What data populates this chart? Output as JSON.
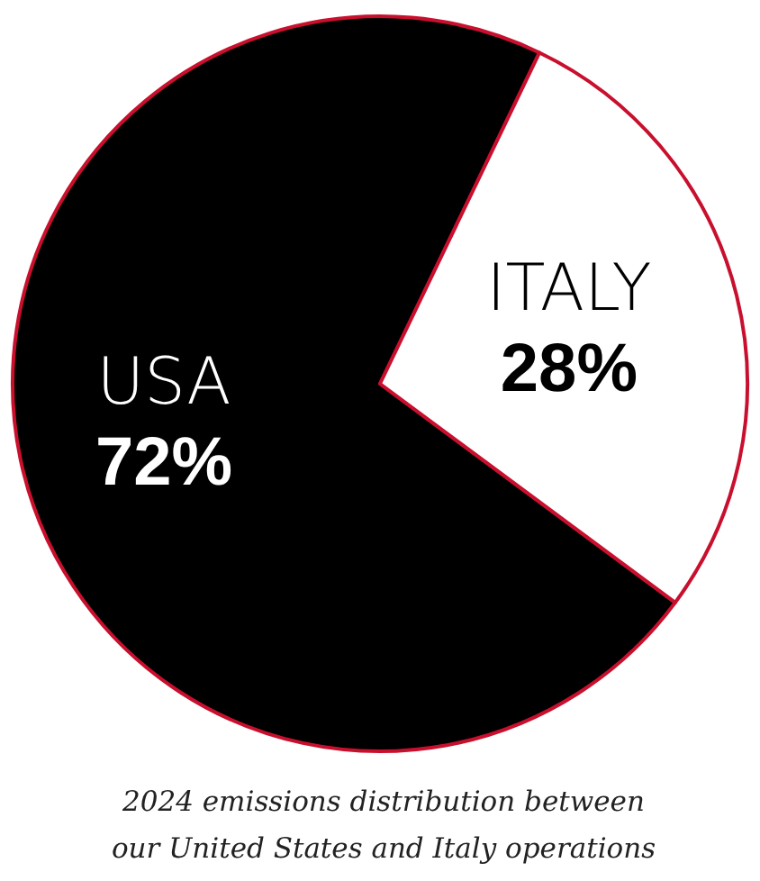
{
  "chart_data": {
    "type": "pie",
    "categories": [
      "USA",
      "ITALY"
    ],
    "values": [
      72,
      28
    ],
    "colors": [
      "#000000",
      "#ffffff"
    ],
    "value_labels": [
      "72%",
      "28%"
    ],
    "legend": false,
    "annotations": [
      "2024 emissions distribution between\nour United States and Italy operations"
    ]
  }
}
